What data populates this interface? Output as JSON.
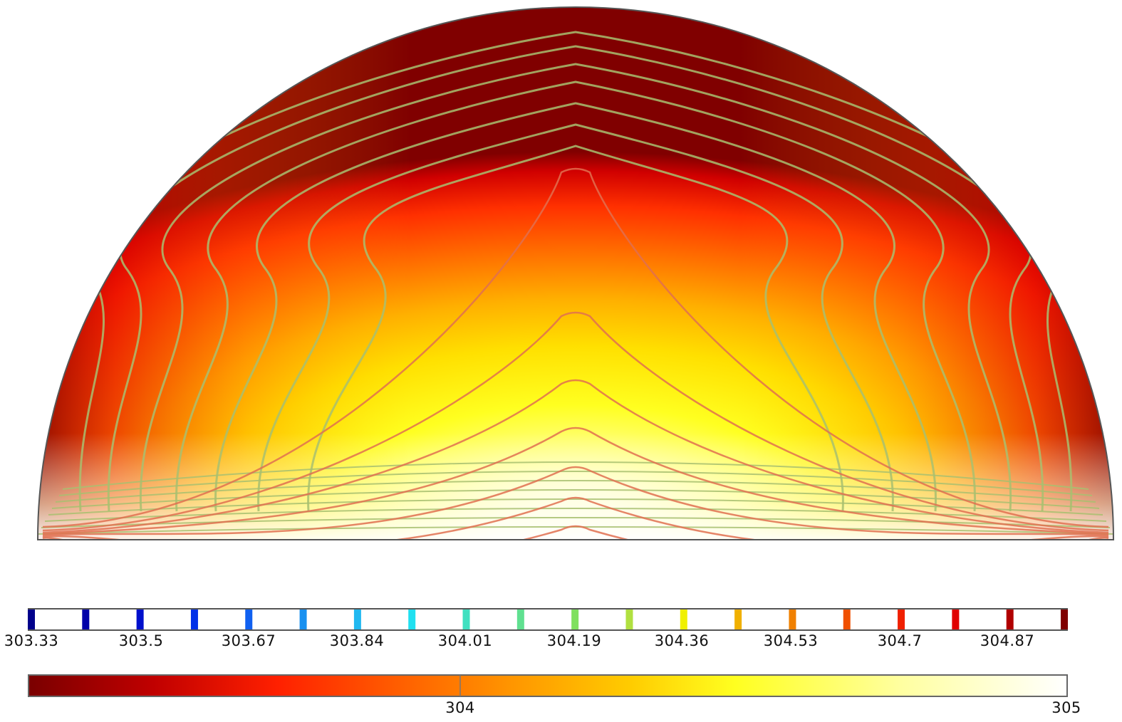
{
  "chart_data": {
    "type": "heatmap",
    "geometry": "semicircle",
    "contour_legend": {
      "tick_labels": [
        "303.33",
        "303.5",
        "303.67",
        "303.84",
        "304.01",
        "304.19",
        "304.36",
        "304.53",
        "304.7",
        "304.87"
      ],
      "levels": [
        303.33,
        303.42,
        303.5,
        303.59,
        303.67,
        303.76,
        303.84,
        303.93,
        304.01,
        304.1,
        304.19,
        304.27,
        304.36,
        304.45,
        304.53,
        304.62,
        304.7,
        304.79,
        304.87,
        304.96
      ],
      "level_colors": [
        "#00008b",
        "#0000a8",
        "#0010cc",
        "#0030e8",
        "#1060f0",
        "#1890f0",
        "#20b8f0",
        "#20e0f0",
        "#40e0c0",
        "#60e090",
        "#80e060",
        "#b0e040",
        "#f0f000",
        "#f0b000",
        "#f08000",
        "#f05000",
        "#f02000",
        "#e00000",
        "#b00000",
        "#800000"
      ]
    },
    "color_legend": {
      "tick_labels": [
        "304",
        "305"
      ],
      "range": [
        303.33,
        305
      ],
      "colormap": [
        "#7a0000",
        "#c00000",
        "#ff2000",
        "#ff7000",
        "#ffa000",
        "#ffd800",
        "#ffff20",
        "#ffffa0",
        "#ffffff"
      ]
    }
  },
  "contours": {
    "outer_color": "#a8c070",
    "inner_color": "#e07050"
  }
}
